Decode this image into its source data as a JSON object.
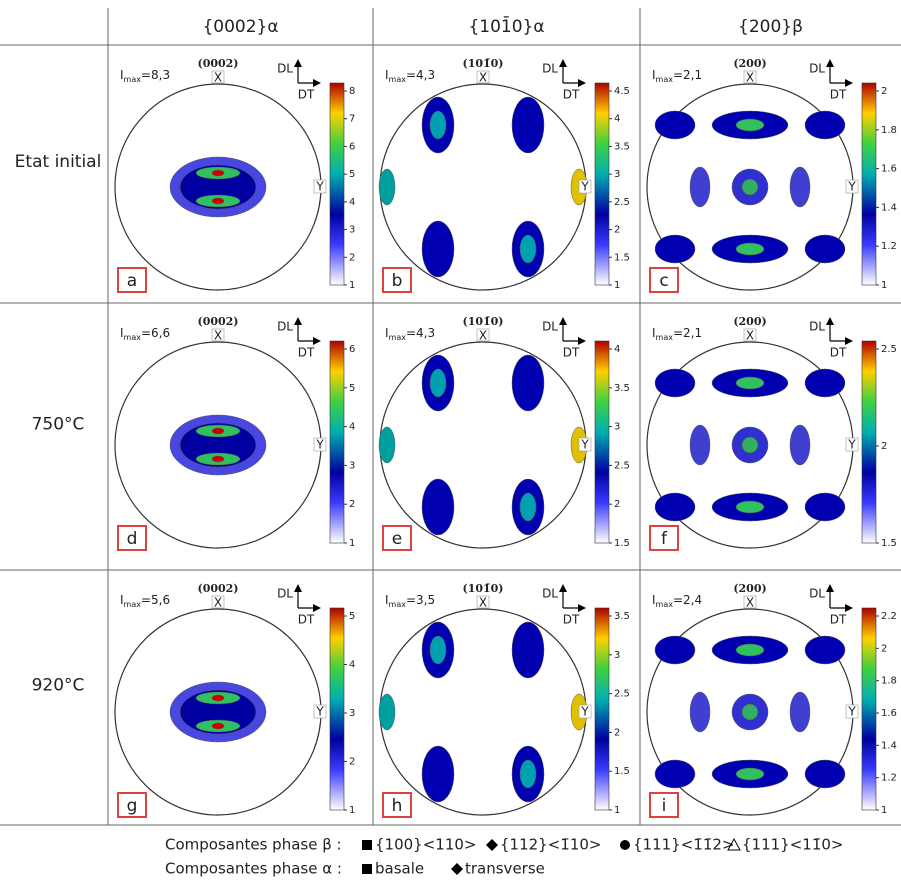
{
  "columns": [
    "{0002}α",
    "{101̄0}α",
    "{200}β"
  ],
  "rows": [
    "Etat initial",
    "750°C",
    "920°C"
  ],
  "imax_symbol": "I",
  "imax_sub": "max",
  "x_label": "X",
  "y_label": "Y",
  "dl_label": "DL",
  "dt_label": "DT",
  "panels": [
    {
      "letter": "a",
      "imax": "=8,3",
      "pole": "(0002)",
      "ticks": [
        1,
        2,
        3,
        4,
        5,
        6,
        7,
        8
      ]
    },
    {
      "letter": "b",
      "imax": "=4,3",
      "pole": "(101̄0)",
      "ticks": [
        1,
        1.5,
        2,
        2.5,
        3,
        3.5,
        4,
        4.5
      ]
    },
    {
      "letter": "c",
      "imax": "=2,1",
      "pole": "(200)",
      "ticks": [
        1,
        1.2,
        1.4,
        1.6,
        1.8,
        2
      ]
    },
    {
      "letter": "d",
      "imax": "=6,6",
      "pole": "(0002)",
      "ticks": [
        1,
        2,
        3,
        4,
        5,
        6
      ]
    },
    {
      "letter": "e",
      "imax": "=4,3",
      "pole": "(101̄0)",
      "ticks": [
        1.5,
        2,
        2.5,
        3,
        3.5,
        4
      ]
    },
    {
      "letter": "f",
      "imax": "=2,1",
      "pole": "(200)",
      "ticks": [
        1.5,
        2,
        2.5
      ]
    },
    {
      "letter": "g",
      "imax": "=5,6",
      "pole": "(0002)",
      "ticks": [
        1,
        2,
        3,
        4,
        5
      ]
    },
    {
      "letter": "h",
      "imax": "=3,5",
      "pole": "(101̄0)",
      "ticks": [
        1,
        1.5,
        2,
        2.5,
        3,
        3.5
      ]
    },
    {
      "letter": "i",
      "imax": "=2,4",
      "pole": "(200)",
      "ticks": [
        1,
        1.2,
        1.4,
        1.6,
        1.8,
        2,
        2.2
      ]
    }
  ],
  "legend": {
    "beta_title": "Composantes phase β :",
    "beta_items": [
      "{100}<110>",
      "{112}<1̄10>",
      "{111}<1̄1̄2>",
      "{111}<11̄0>"
    ],
    "alpha_title": "Composantes phase α :",
    "alpha_items": [
      "basale",
      "transverse"
    ]
  }
}
